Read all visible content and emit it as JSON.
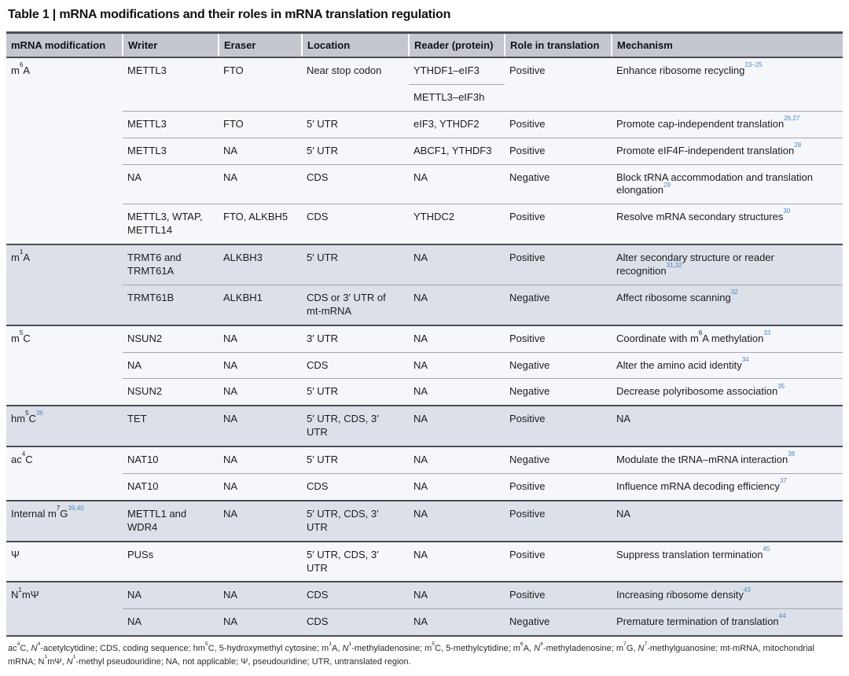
{
  "title": "Table 1 | mRNA modifications and their roles in mRNA translation regulation",
  "colors": {
    "citation_ref_blue": "#4a87c4",
    "header_bg": "#c4c6d0",
    "group_shade_dark": "#dce0e8",
    "group_shade_light": "#f6f7fa",
    "rule_dark": "#4c4e54"
  },
  "table": {
    "columns": [
      "mRNA modification",
      "Writer",
      "Eraser",
      "Location",
      "Reader (protein)",
      "Role in translation",
      "Mechanism"
    ],
    "groups": [
      {
        "modification": "m{sup:6}A",
        "rows": [
          {
            "writer": "METTL3",
            "eraser": "FTO",
            "location": "Near stop codon",
            "reader": "YTHDF1–eIF3",
            "role": "Positive",
            "mechanism": "Enhance ribosome recycling{ref:23–25}"
          },
          {
            "reader": "METTL3–eIF3h"
          },
          {
            "writer": "METTL3",
            "eraser": "FTO",
            "location": "5′ UTR",
            "reader": "eIF3, YTHDF2",
            "role": "Positive",
            "mechanism": "Promote cap-independent translation{ref:26,27}"
          },
          {
            "writer": "METTL3",
            "eraser": "NA",
            "location": "5′ UTR",
            "reader": "ABCF1, YTHDF3",
            "role": "Positive",
            "mechanism": "Promote eIF4F-independent translation{ref:28}"
          },
          {
            "writer": "NA",
            "eraser": "NA",
            "location": "CDS",
            "reader": "NA",
            "role": "Negative",
            "mechanism": "Block tRNA accommodation and translation elongation{ref:29}"
          },
          {
            "writer": "METTL3, WTAP, METTL14",
            "eraser": "FTO, ALKBH5",
            "location": "CDS",
            "reader": "YTHDC2",
            "role": "Positive",
            "mechanism": "Resolve mRNA secondary structures{ref:30}"
          }
        ]
      },
      {
        "modification": "m{sup:1}A",
        "rows": [
          {
            "writer": "TRMT6 and TRMT61A",
            "eraser": "ALKBH3",
            "location": "5′ UTR",
            "reader": "NA",
            "role": "Positive",
            "mechanism": "Alter secondary structure or reader recognition{ref:31,32}"
          },
          {
            "writer": "TRMT61B",
            "eraser": "ALKBH1",
            "location": "CDS or 3′ UTR of mt-mRNA",
            "reader": "NA",
            "role": "Negative",
            "mechanism": "Affect ribosome scanning{ref:32}"
          }
        ]
      },
      {
        "modification": "m{sup:5}C",
        "rows": [
          {
            "writer": "NSUN2",
            "eraser": "NA",
            "location": "3′ UTR",
            "reader": "NA",
            "role": "Positive",
            "mechanism": "Coordinate with m{sup:6}A methylation{ref:33}"
          },
          {
            "writer": "NA",
            "eraser": "NA",
            "location": "CDS",
            "reader": "NA",
            "role": "Negative",
            "mechanism": "Alter the amino acid identity{ref:34}"
          },
          {
            "writer": "NSUN2",
            "eraser": "NA",
            "location": "5′ UTR",
            "reader": "NA",
            "role": "Negative",
            "mechanism": "Decrease polyribosome association{ref:35}"
          }
        ]
      },
      {
        "modification": "hm{sup:5}C{ref:36}",
        "rows": [
          {
            "writer": "TET",
            "eraser": "NA",
            "location": "5′ UTR, CDS, 3′ UTR",
            "reader": "NA",
            "role": "Positive",
            "mechanism": "NA"
          }
        ]
      },
      {
        "modification": "ac{sup:4}C",
        "rows": [
          {
            "writer": "NAT10",
            "eraser": "NA",
            "location": "5′ UTR",
            "reader": "NA",
            "role": "Negative",
            "mechanism": "Modulate the tRNA–mRNA interaction{ref:38}"
          },
          {
            "writer": "NAT10",
            "eraser": "NA",
            "location": "CDS",
            "reader": "NA",
            "role": "Positive",
            "mechanism": "Influence mRNA decoding efficiency{ref:37}"
          }
        ]
      },
      {
        "modification": "Internal m{sup:7}G{ref:39,40}",
        "rows": [
          {
            "writer": "METTL1 and WDR4",
            "eraser": "NA",
            "location": "5′ UTR, CDS, 3′ UTR",
            "reader": "NA",
            "role": "Positive",
            "mechanism": "NA"
          }
        ]
      },
      {
        "modification": "Ψ",
        "rows": [
          {
            "writer": "PUSs",
            "eraser": "",
            "location": "5′ UTR, CDS, 3′ UTR",
            "reader": "NA",
            "role": "Positive",
            "mechanism": "Suppress translation termination{ref:45}"
          }
        ]
      },
      {
        "modification": "N{sup:1}mΨ",
        "rows": [
          {
            "writer": "NA",
            "eraser": "NA",
            "location": "CDS",
            "reader": "NA",
            "role": "Positive",
            "mechanism": "Increasing ribosome density{ref:43}"
          },
          {
            "writer": "NA",
            "eraser": "NA",
            "location": "CDS",
            "reader": "NA",
            "role": "Negative",
            "mechanism": "Premature termination of translation{ref:44}"
          }
        ]
      }
    ]
  },
  "footnote": "ac{sup:4}C, {i:N}{sup:4}-acetylcytidine; CDS, coding sequence; hm{sup:5}C, 5-hydroxymethyl cytosine; m{sup:1}A, {i:N}{sup:1}-methyladenosine; m{sup:5}C, 5-methylcytidine; m{sup:6}A, {i:N}{sup:6}-methyladenosine; m{sup:7}G, {i:N}{sup:7}-methylguanosine; mt-mRNA, mitochondrial mRNA; N{sup:1}mΨ, {i:N}{sup:1}-methyl pseudouridine; NA, not applicable; Ψ, pseudouridine; UTR, untranslated region."
}
